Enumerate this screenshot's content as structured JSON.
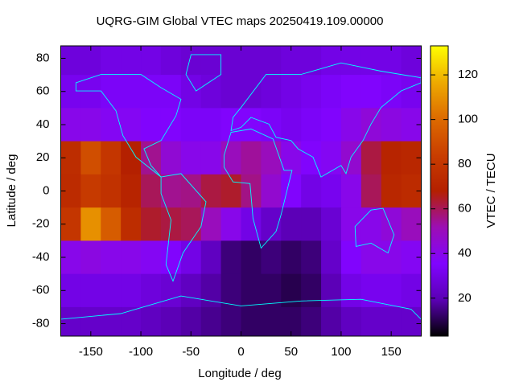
{
  "chart_data": {
    "type": "heatmap",
    "title": "UQRG-GIM Global VTEC maps 20250419.109.00000",
    "xlabel": "Longitude / deg",
    "ylabel": "Latitude / deg",
    "colorbar_label": "VTEC / TECU",
    "x": [
      -170,
      -150,
      -130,
      -110,
      -90,
      -70,
      -50,
      -30,
      -10,
      10,
      30,
      50,
      70,
      90,
      110,
      130,
      150,
      170
    ],
    "y": [
      80,
      60,
      40,
      20,
      0,
      -20,
      -40,
      -60,
      -80
    ],
    "z": [
      [
        28,
        28,
        30,
        30,
        30,
        28,
        26,
        26,
        26,
        26,
        26,
        28,
        28,
        30,
        30,
        30,
        30,
        28
      ],
      [
        32,
        32,
        34,
        34,
        34,
        34,
        30,
        28,
        26,
        26,
        28,
        30,
        32,
        34,
        36,
        36,
        34,
        32
      ],
      [
        40,
        40,
        38,
        38,
        36,
        36,
        34,
        34,
        36,
        36,
        34,
        32,
        34,
        36,
        40,
        44,
        42,
        40
      ],
      [
        75,
        90,
        80,
        68,
        55,
        45,
        40,
        40,
        50,
        54,
        50,
        40,
        36,
        38,
        46,
        62,
        70,
        72
      ],
      [
        74,
        82,
        78,
        70,
        60,
        55,
        56,
        62,
        64,
        56,
        46,
        36,
        30,
        32,
        40,
        60,
        72,
        74
      ],
      [
        80,
        110,
        95,
        75,
        64,
        62,
        60,
        50,
        40,
        30,
        24,
        20,
        20,
        26,
        40,
        40,
        44,
        50
      ],
      [
        40,
        42,
        40,
        40,
        38,
        36,
        30,
        22,
        14,
        12,
        14,
        12,
        14,
        24,
        36,
        40,
        40,
        38
      ],
      [
        30,
        30,
        30,
        30,
        28,
        26,
        22,
        18,
        14,
        12,
        12,
        10,
        12,
        20,
        30,
        32,
        32,
        30
      ],
      [
        24,
        24,
        24,
        24,
        22,
        20,
        18,
        16,
        14,
        12,
        12,
        12,
        14,
        18,
        22,
        24,
        24,
        24
      ]
    ],
    "xlim": [
      -180,
      180
    ],
    "ylim": [
      -87.5,
      87.5
    ],
    "xticks": [
      -150,
      -100,
      -50,
      0,
      50,
      100,
      150
    ],
    "yticks": [
      -80,
      -60,
      -40,
      -20,
      0,
      20,
      40,
      60,
      80
    ],
    "zlim": [
      3,
      133
    ],
    "zticks": [
      20,
      40,
      60,
      80,
      100,
      120
    ],
    "palette": [
      "#000000",
      "#5a00b4",
      "#8004ff",
      "#9c0eb4",
      "#b42000",
      "#c93e00",
      "#dd6b00",
      "#eeab00",
      "#ffff00"
    ]
  }
}
